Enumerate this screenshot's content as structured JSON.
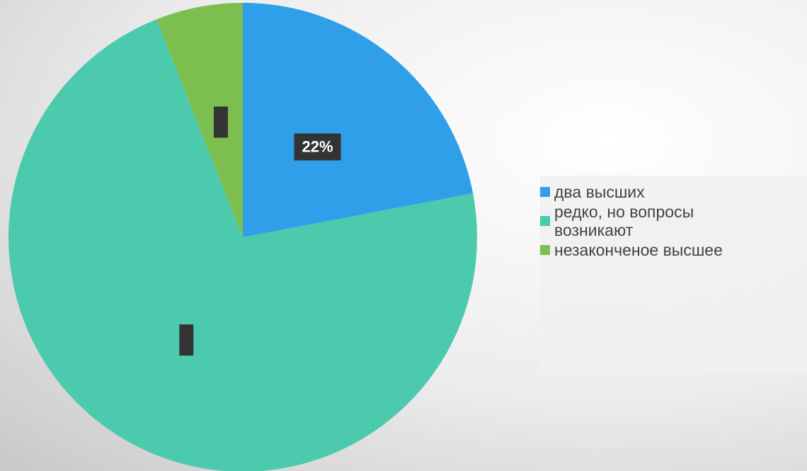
{
  "chart_data": {
    "type": "pie",
    "categories": [
      "два высших",
      "редко, но вопросы возникают",
      "незаконченое высшее"
    ],
    "values": [
      22,
      72,
      6
    ],
    "value_labels": [
      "22%",
      null,
      null
    ],
    "colors": [
      "#2e9fe8",
      "#4ccaae",
      "#7dbf4f"
    ]
  }
}
